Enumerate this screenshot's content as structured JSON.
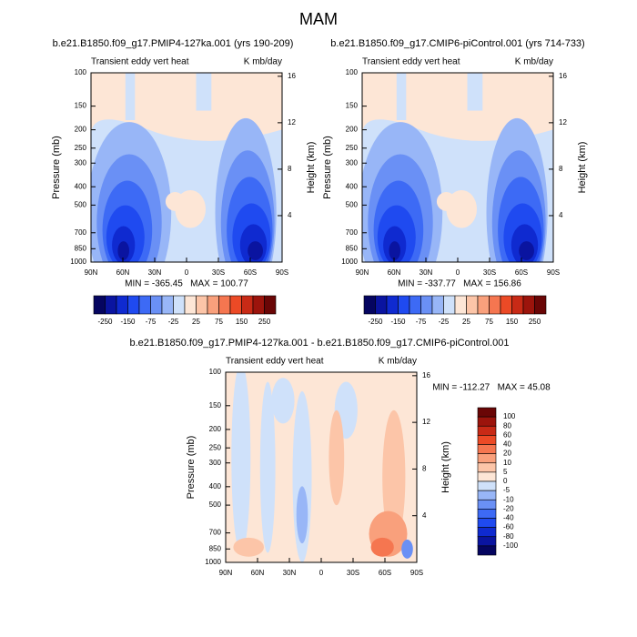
{
  "title": "MAM",
  "chart_data": [
    {
      "type": "contour",
      "title": "b.e21.B1850.f09_g17.PMIP4-127ka.001 (yrs 190-209)",
      "subtitle_left": "Transient eddy vert heat",
      "subtitle_right": "K mb/day",
      "ylabel": "Pressure (mb)",
      "y2label": "Height (km)",
      "xlim": [
        90,
        -90
      ],
      "xticks": [
        {
          "value": 90,
          "label": "90N"
        },
        {
          "value": 60,
          "label": "60N"
        },
        {
          "value": 30,
          "label": "30N"
        },
        0,
        {
          "value": -30,
          "label": "30S"
        },
        {
          "value": -60,
          "label": "60S"
        },
        {
          "value": -90,
          "label": "90S"
        }
      ],
      "ylim": [
        1000,
        100
      ],
      "yscale": "log",
      "yticks": [
        100,
        150,
        200,
        250,
        300,
        400,
        500,
        700,
        850,
        1000
      ],
      "y2lim": [
        0,
        16.3
      ],
      "y2ticks": [
        4,
        8,
        12,
        16
      ],
      "stats": "MIN = -365.45   MAX = 100.77",
      "colorbar": {
        "colors": [
          "#050560",
          "#0a14a0",
          "#0f2ad0",
          "#1f4af0",
          "#3d6af5",
          "#6a90f5",
          "#98b6f7",
          "#cfe1fa",
          "#fde6d6",
          "#fcc5a8",
          "#f9a07c",
          "#f57650",
          "#ec4a26",
          "#c82a16",
          "#9c140c",
          "#6a0606"
        ],
        "ticks": [
          -250,
          -150,
          -75,
          -25,
          25,
          75,
          150,
          250
        ]
      }
    },
    {
      "type": "contour",
      "title": "b.e21.B1850.f09_g17.CMIP6-piControl.001 (yrs 714-733)",
      "subtitle_left": "Transient eddy vert heat",
      "subtitle_right": "K mb/day",
      "ylabel": "Pressure (mb)",
      "y2label": "Height (km)",
      "xlim": [
        90,
        -90
      ],
      "xticks": [
        {
          "value": 90,
          "label": "90N"
        },
        {
          "value": 60,
          "label": "60N"
        },
        {
          "value": 30,
          "label": "30N"
        },
        0,
        {
          "value": -30,
          "label": "30S"
        },
        {
          "value": -60,
          "label": "60S"
        },
        {
          "value": -90,
          "label": "90S"
        }
      ],
      "ylim": [
        1000,
        100
      ],
      "yscale": "log",
      "yticks": [
        100,
        150,
        200,
        250,
        300,
        400,
        500,
        700,
        850,
        1000
      ],
      "y2lim": [
        0,
        16.3
      ],
      "y2ticks": [
        4,
        8,
        12,
        16
      ],
      "stats": "MIN = -337.77   MAX = 156.86",
      "colorbar": {
        "colors": [
          "#050560",
          "#0a14a0",
          "#0f2ad0",
          "#1f4af0",
          "#3d6af5",
          "#6a90f5",
          "#98b6f7",
          "#cfe1fa",
          "#fde6d6",
          "#fcc5a8",
          "#f9a07c",
          "#f57650",
          "#ec4a26",
          "#c82a16",
          "#9c140c",
          "#6a0606"
        ],
        "ticks": [
          -250,
          -150,
          -75,
          -25,
          25,
          75,
          150,
          250
        ]
      }
    },
    {
      "type": "contour",
      "title": "b.e21.B1850.f09_g17.PMIP4-127ka.001 - b.e21.B1850.f09_g17.CMIP6-piControl.001",
      "subtitle_left": "Transient eddy vert heat",
      "subtitle_right": "K mb/day",
      "ylabel": "Pressure (mb)",
      "y2label": "Height (km)",
      "xlim": [
        90,
        -90
      ],
      "xticks": [
        {
          "value": 90,
          "label": "90N"
        },
        {
          "value": 60,
          "label": "60N"
        },
        {
          "value": 30,
          "label": "30N"
        },
        0,
        {
          "value": -30,
          "label": "30S"
        },
        {
          "value": -60,
          "label": "60S"
        },
        {
          "value": -90,
          "label": "90S"
        }
      ],
      "ylim": [
        1000,
        100
      ],
      "yscale": "log",
      "yticks": [
        100,
        150,
        200,
        250,
        300,
        400,
        500,
        700,
        850,
        1000
      ],
      "y2lim": [
        0,
        16.3
      ],
      "y2ticks": [
        4,
        8,
        12,
        16
      ],
      "stats": "MIN = -112.27   MAX = 45.08",
      "colorbar": {
        "colors": [
          "#050560",
          "#0a14a0",
          "#0f2ad0",
          "#1f4af0",
          "#3d6af5",
          "#6a90f5",
          "#98b6f7",
          "#cfe1fa",
          "#fde6d6",
          "#fcc5a8",
          "#f9a07c",
          "#f57650",
          "#ec4a26",
          "#c82a16",
          "#9c140c",
          "#6a0606"
        ],
        "ticks": [
          100,
          80,
          60,
          40,
          20,
          10,
          5,
          0,
          -5,
          -10,
          -20,
          -40,
          -60,
          -80,
          -100
        ]
      }
    }
  ]
}
